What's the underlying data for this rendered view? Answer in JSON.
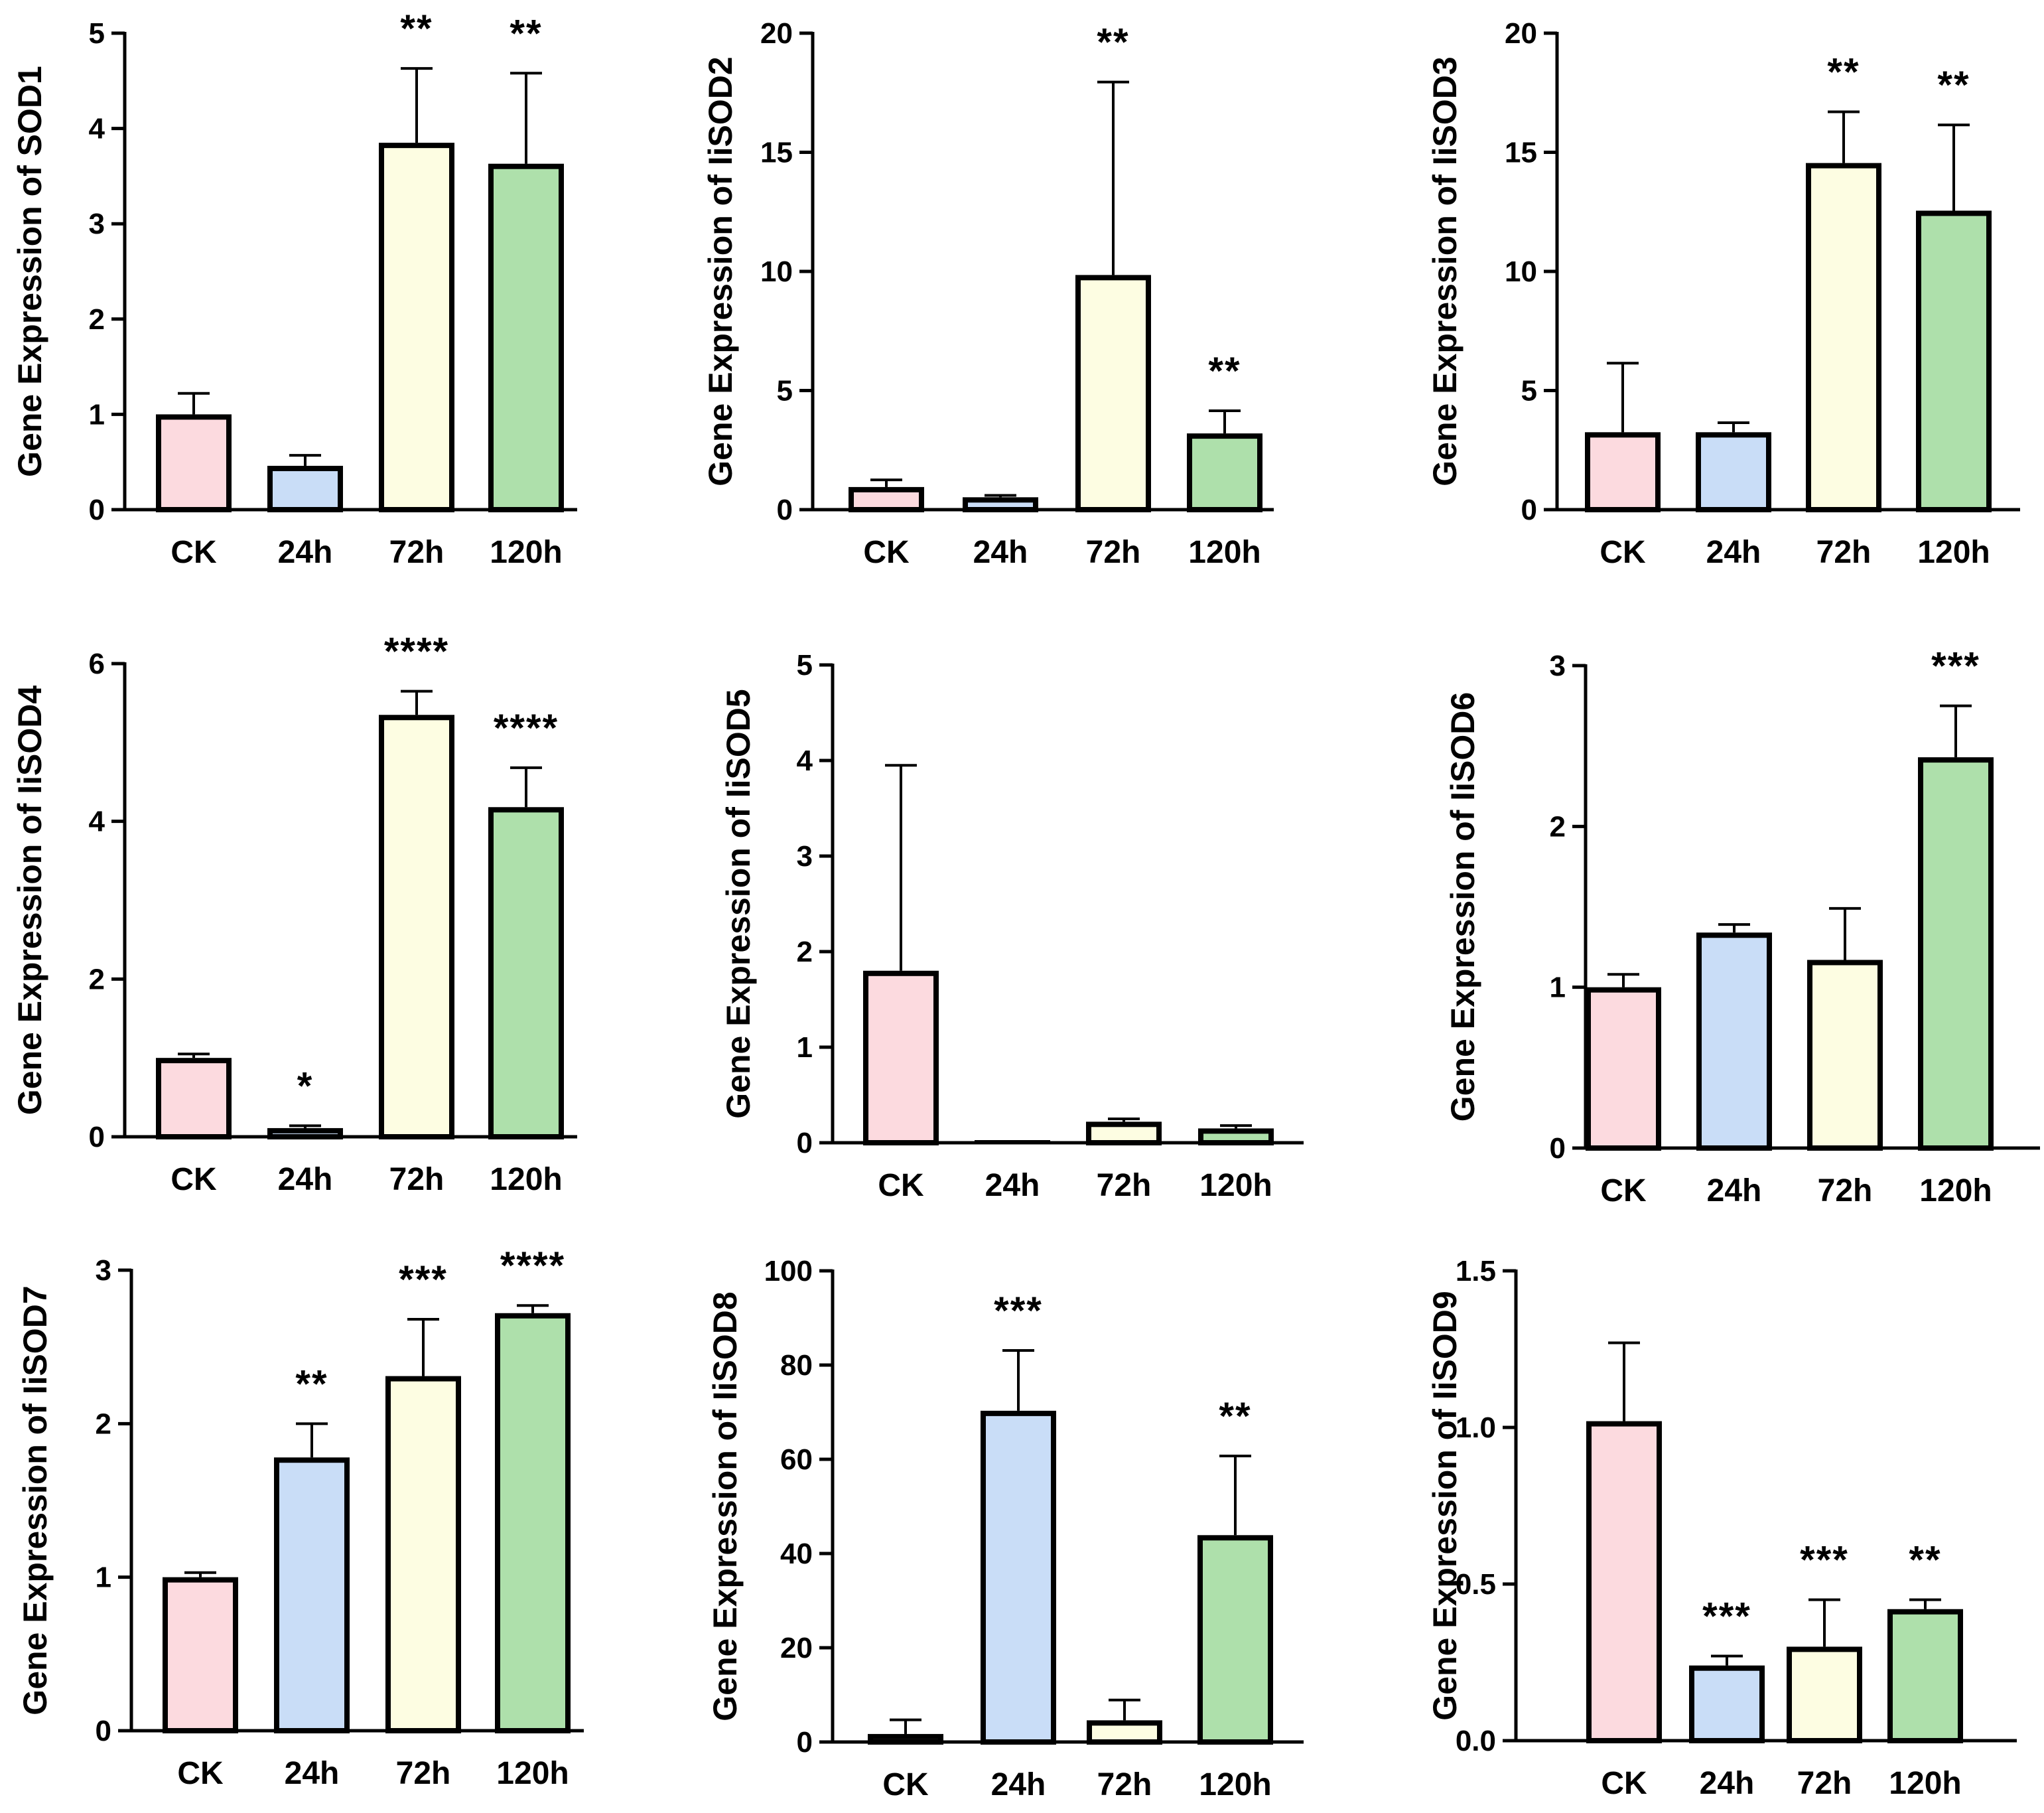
{
  "colors": {
    "CK": "#fcdadf",
    "24h": "#c9ddf7",
    "72h": "#fdfde2",
    "120h": "#aee0ab",
    "stroke": "#000000"
  },
  "chart_data": [
    {
      "type": "bar",
      "panel": "SOD1",
      "ylabel": "Gene Expression of SOD1",
      "categories": [
        "CK",
        "24h",
        "72h",
        "120h"
      ],
      "values": [
        1.0,
        0.46,
        3.85,
        3.63
      ],
      "errors": [
        0.22,
        0.11,
        0.78,
        0.95
      ],
      "significance": [
        "",
        "",
        "**",
        "**"
      ],
      "ylim": [
        0,
        5
      ],
      "yticks": [
        "0",
        "1",
        "2",
        "3",
        "4",
        "5"
      ]
    },
    {
      "type": "bar",
      "panel": "IiSOD2",
      "ylabel": "Gene Expression of IiSOD2",
      "categories": [
        "CK",
        "24h",
        "72h",
        "120h"
      ],
      "values": [
        0.95,
        0.52,
        9.85,
        3.2
      ],
      "errors": [
        0.3,
        0.08,
        8.1,
        0.95
      ],
      "significance": [
        "",
        "",
        "**",
        "**"
      ],
      "ylim": [
        0,
        20
      ],
      "yticks": [
        "0",
        "5",
        "10",
        "15",
        "20"
      ]
    },
    {
      "type": "bar",
      "panel": "IiSOD3",
      "ylabel": "Gene Expression of IiSOD3",
      "categories": [
        "CK",
        "24h",
        "72h",
        "120h"
      ],
      "values": [
        3.25,
        3.25,
        14.55,
        12.55
      ],
      "errors": [
        2.9,
        0.4,
        2.15,
        3.6
      ],
      "significance": [
        "",
        "",
        "**",
        "**"
      ],
      "ylim": [
        0,
        20
      ],
      "yticks": [
        "0",
        "5",
        "10",
        "15",
        "20"
      ]
    },
    {
      "type": "bar",
      "panel": "IiSOD4",
      "ylabel": "Gene Expression of IiSOD4",
      "categories": [
        "CK",
        "24h",
        "72h",
        "120h"
      ],
      "values": [
        1.0,
        0.11,
        5.35,
        4.18
      ],
      "errors": [
        0.05,
        0.03,
        0.3,
        0.5
      ],
      "significance": [
        "",
        "*",
        "****",
        "****"
      ],
      "ylim": [
        0,
        6
      ],
      "yticks": [
        "0",
        "2",
        "4",
        "6"
      ]
    },
    {
      "type": "bar",
      "panel": "IiSOD5",
      "ylabel": "Gene Expression of IiSOD5",
      "categories": [
        "CK",
        "24h",
        "72h",
        "120h"
      ],
      "values": [
        1.8,
        0.01,
        0.22,
        0.15
      ],
      "errors": [
        2.15,
        0.0,
        0.03,
        0.03
      ],
      "significance": [
        "",
        "",
        "",
        ""
      ],
      "ylim": [
        0,
        5
      ],
      "yticks": [
        "0",
        "1",
        "2",
        "3",
        "4",
        "5"
      ]
    },
    {
      "type": "bar",
      "panel": "IiSOD6",
      "ylabel": "Gene Expression of IiSOD6",
      "categories": [
        "CK",
        "24h",
        "72h",
        "120h"
      ],
      "values": [
        1.0,
        1.34,
        1.17,
        2.43
      ],
      "errors": [
        0.08,
        0.05,
        0.32,
        0.32
      ],
      "significance": [
        "",
        "",
        "",
        "***"
      ],
      "ylim": [
        0,
        3
      ],
      "yticks": [
        "0",
        "1",
        "2",
        "3"
      ]
    },
    {
      "type": "bar",
      "panel": "IiSOD7",
      "ylabel": "Gene Expression of IiSOD7",
      "categories": [
        "CK",
        "24h",
        "72h",
        "120h"
      ],
      "values": [
        1.0,
        1.78,
        2.31,
        2.72
      ],
      "errors": [
        0.03,
        0.22,
        0.37,
        0.05
      ],
      "significance": [
        "",
        "**",
        "***",
        "****"
      ],
      "ylim": [
        0,
        3
      ],
      "yticks": [
        "0",
        "1",
        "2",
        "3"
      ]
    },
    {
      "type": "bar",
      "panel": "IiSOD8",
      "ylabel": "Gene Expression of IiSOD8",
      "categories": [
        "CK",
        "24h",
        "72h",
        "120h"
      ],
      "values": [
        1.7,
        70.3,
        4.6,
        43.9
      ],
      "errors": [
        3.0,
        12.8,
        4.3,
        16.8
      ],
      "significance": [
        "",
        "***",
        "",
        "**"
      ],
      "ylim": [
        0,
        100
      ],
      "yticks": [
        "0",
        "20",
        "40",
        "60",
        "80",
        "100"
      ]
    },
    {
      "type": "bar",
      "panel": "IiSOD9",
      "ylabel": "Gene Expression of IiSOD9",
      "categories": [
        "CK",
        "24h",
        "72h",
        "120h"
      ],
      "values": [
        1.02,
        0.24,
        0.3,
        0.42
      ],
      "errors": [
        0.25,
        0.03,
        0.15,
        0.03
      ],
      "significance": [
        "",
        "***",
        "***",
        "**"
      ],
      "ylim": [
        0,
        1.5
      ],
      "yticks": [
        "0.0",
        "0.5",
        "1.0",
        "1.5"
      ]
    }
  ]
}
